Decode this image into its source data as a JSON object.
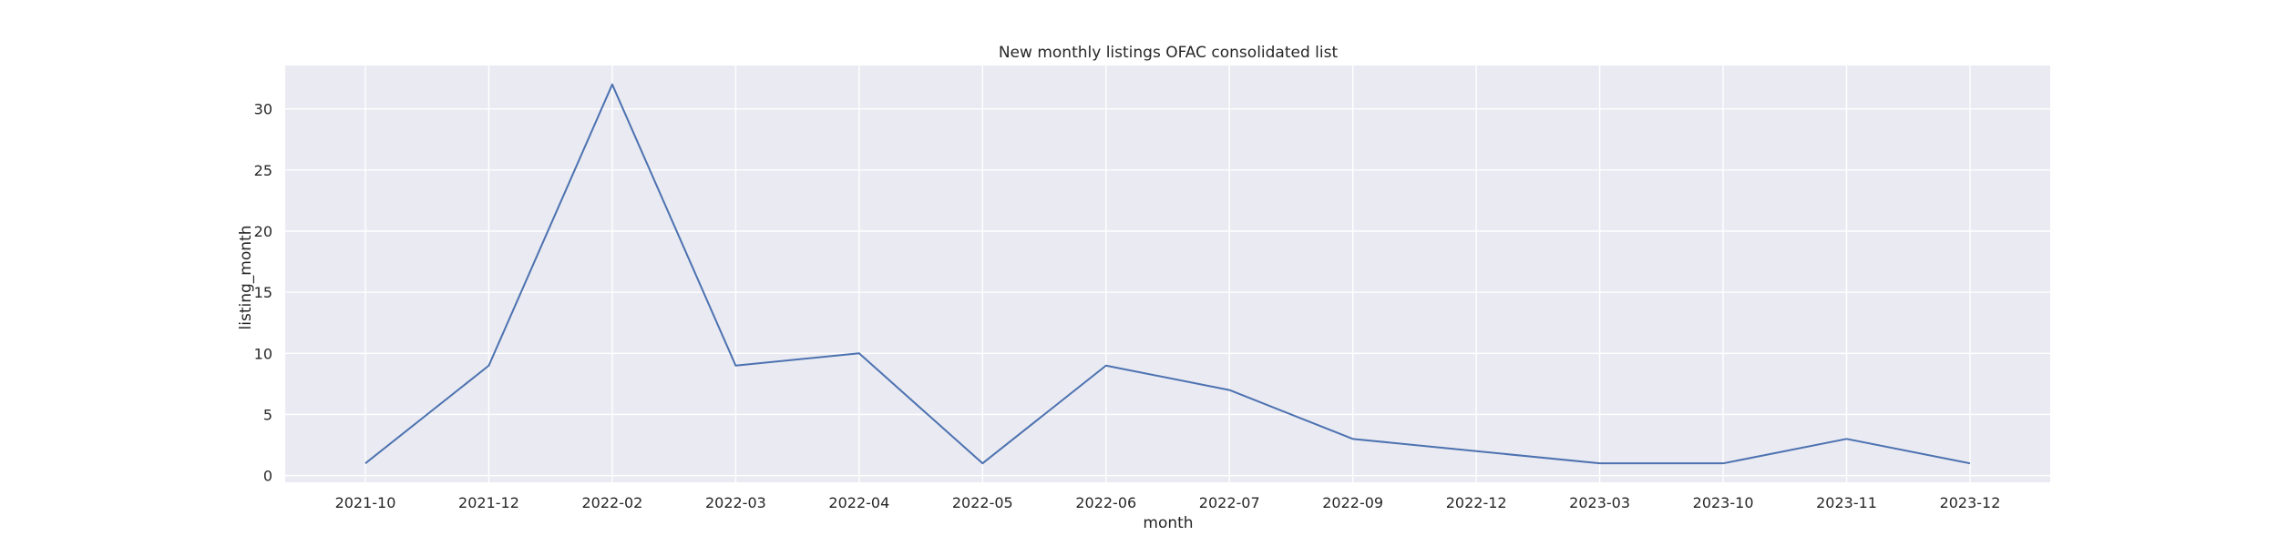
{
  "chart_data": {
    "type": "line",
    "title": "New monthly listings OFAC consolidated list",
    "xlabel": "month",
    "ylabel": "listing_month",
    "categories": [
      "2021-10",
      "2021-12",
      "2022-02",
      "2022-03",
      "2022-04",
      "2022-05",
      "2022-06",
      "2022-07",
      "2022-09",
      "2022-12",
      "2023-03",
      "2023-10",
      "2023-11",
      "2023-12"
    ],
    "series": [
      {
        "values": [
          1,
          9,
          32,
          9,
          10,
          1,
          9,
          7,
          3,
          2,
          1,
          1,
          3,
          1
        ]
      }
    ],
    "yticks": [
      0,
      5,
      10,
      15,
      20,
      25,
      30
    ],
    "ylim": [
      -0.55,
      33.55
    ],
    "grid": true,
    "legend": "none",
    "colors": {
      "line": "#4c72b0",
      "plot_background": "#eaeaf2",
      "grid": "#ffffff"
    }
  }
}
